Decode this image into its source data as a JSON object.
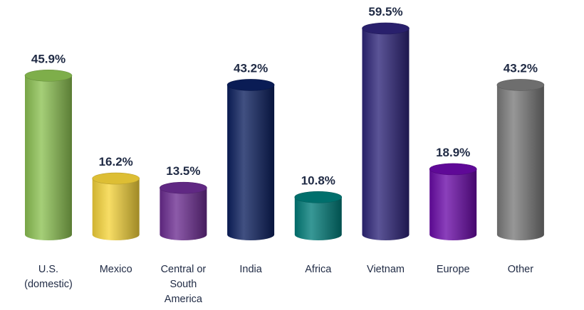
{
  "chart_data": {
    "type": "bar",
    "style": "3d-cylinder",
    "categories": [
      "U.S.\n(domestic)",
      "Mexico",
      "Central or\nSouth\nAmerica",
      "India",
      "Africa",
      "Vietnam",
      "Europe",
      "Other"
    ],
    "values": [
      45.9,
      16.2,
      13.5,
      43.2,
      10.8,
      59.5,
      18.9,
      43.2
    ],
    "value_labels": [
      "45.9%",
      "16.2%",
      "13.5%",
      "43.2%",
      "10.8%",
      "59.5%",
      "18.9%",
      "43.2%"
    ],
    "colors": [
      "#8cc152",
      "#f5d33a",
      "#6b2c91",
      "#0b1f5e",
      "#007b78",
      "#2d2478",
      "#6a0aa8",
      "#7a7a7a"
    ],
    "title": "",
    "xlabel": "",
    "ylabel": "",
    "ylim": [
      0,
      59.5
    ],
    "grid": false,
    "legend": "none"
  }
}
